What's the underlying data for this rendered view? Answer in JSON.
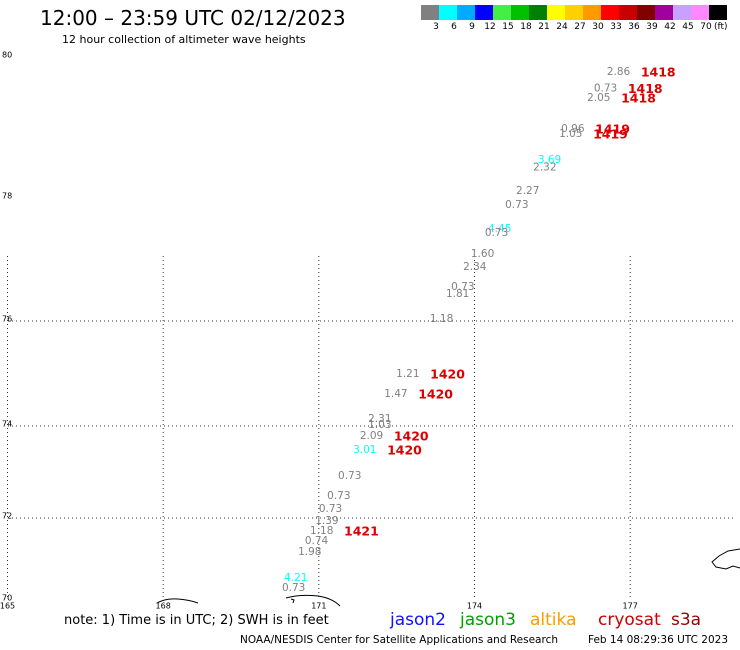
{
  "header": {
    "title": "12:00 – 23:59 UTC 02/12/2023",
    "subtitle": "12 hour collection of altimeter wave heights"
  },
  "legend": {
    "colors": [
      "#808080",
      "#00ffff",
      "#00aaff",
      "#0000ff",
      "#44ee44",
      "#00c000",
      "#008000",
      "#ffff00",
      "#ffd000",
      "#ff9900",
      "#ff0000",
      "#c80000",
      "#800000",
      "#a000a0",
      "#c8a0ff",
      "#ff88ff",
      "#000000"
    ],
    "labels": [
      "3",
      "6",
      "9",
      "12",
      "15",
      "18",
      "21",
      "24",
      "27",
      "30",
      "33",
      "36",
      "39",
      "42",
      "45",
      "70"
    ],
    "unit": "(ft)"
  },
  "map": {
    "lat_labels": [
      "80",
      "78",
      "76",
      "74",
      "72",
      "70"
    ],
    "lon_labels": [
      "165",
      "168",
      "171",
      "174",
      "177"
    ],
    "time_color": "#dd0000",
    "observations": [
      {
        "swh": "2.86",
        "time": "1418",
        "lat": 79.79,
        "lon": 176.55
      },
      {
        "swh": "0.73",
        "time": "1418",
        "lat": 79.55,
        "lon": 176.3
      },
      {
        "swh": "2.05",
        "time": "1418",
        "lat": 79.42,
        "lon": 176.17
      },
      {
        "swh": "0.96",
        "time": "1419",
        "lat": 78.98,
        "lon": 175.67
      },
      {
        "swh": "1.05",
        "time": "1419",
        "lat": 78.91,
        "lon": 175.63
      },
      {
        "swh": "3.69",
        "lat": 78.54,
        "lon": 175.22
      },
      {
        "swh": "2.32",
        "lat": 78.43,
        "lon": 175.13
      },
      {
        "swh": "2.27",
        "lat": 78.1,
        "lon": 174.8
      },
      {
        "swh": "0.73",
        "lat": 77.89,
        "lon": 174.59
      },
      {
        "swh": "4.45",
        "lat": 77.5,
        "lon": 174.26
      },
      {
        "swh": "0.73",
        "lat": 77.43,
        "lon": 174.2
      },
      {
        "swh": "1.60",
        "lat": 77.09,
        "lon": 173.93
      },
      {
        "swh": "2.34",
        "lat": 76.88,
        "lon": 173.78
      },
      {
        "swh": "0.73",
        "lat": 76.55,
        "lon": 173.55
      },
      {
        "swh": "1.81",
        "lat": 76.44,
        "lon": 173.45
      },
      {
        "swh": "1.18",
        "lat": 76.03,
        "lon": 173.14
      },
      {
        "swh": "1.21",
        "time": "1420",
        "lat": 74.99,
        "lon": 172.49
      },
      {
        "swh": "1.47",
        "time": "1420",
        "lat": 74.61,
        "lon": 172.26
      },
      {
        "swh": "2.31",
        "lat": 74.13,
        "lon": 171.95
      },
      {
        "swh": "1.03",
        "lat": 74.02,
        "lon": 171.95
      },
      {
        "swh": "2.09",
        "time": "1420",
        "lat": 73.78,
        "lon": 171.79
      },
      {
        "swh": "3.01",
        "time": "1420",
        "lat": 73.48,
        "lon": 171.66
      },
      {
        "swh": "0.73",
        "lat": 72.91,
        "lon": 171.37
      },
      {
        "swh": "0.73",
        "lat": 72.48,
        "lon": 171.16
      },
      {
        "swh": "0.73",
        "lat": 72.2,
        "lon": 171.0
      },
      {
        "swh": "1.39",
        "lat": 71.93,
        "lon": 170.93
      },
      {
        "swh": "1.18",
        "time": "1421",
        "lat": 71.68,
        "lon": 170.83
      },
      {
        "swh": "0.74",
        "lat": 71.44,
        "lon": 170.73
      },
      {
        "swh": "1.98",
        "lat": 71.17,
        "lon": 170.6
      },
      {
        "swh": "4.21",
        "lat": 70.54,
        "lon": 170.33
      },
      {
        "swh": "0.73",
        "lat": 70.29,
        "lon": 170.29
      }
    ]
  },
  "note": "note: 1) Time is in UTC; 2) SWH is in feet",
  "satellites": [
    {
      "name": "jason2",
      "color": "#1010ff"
    },
    {
      "name": "jason3",
      "color": "#00a000"
    },
    {
      "name": "altika",
      "color": "#ff9900"
    },
    {
      "name": "cryosat",
      "color": "#cc0000"
    },
    {
      "name": "s3a",
      "color": "#990000"
    }
  ],
  "footer": {
    "credit": "NOAA/NESDIS Center for Satellite Applications and Research",
    "timestamp": "Feb 14 08:29:36 UTC 2023"
  }
}
